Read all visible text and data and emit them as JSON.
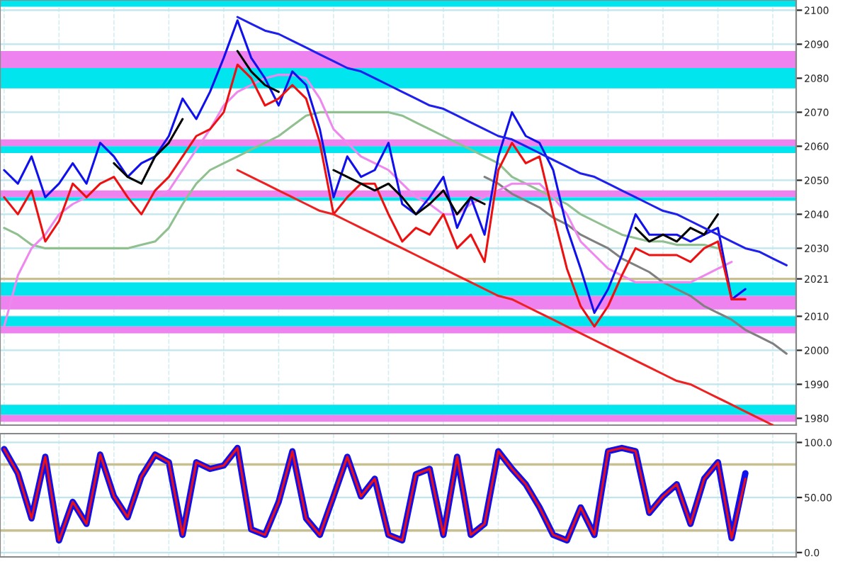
{
  "chart_data": [
    {
      "type": "line",
      "tick_labels": "y",
      "grid": true,
      "categories": [
        null,
        null,
        null,
        null,
        null,
        null,
        null,
        null,
        null,
        null,
        null,
        null,
        null,
        null,
        null,
        null,
        null,
        null,
        null,
        null,
        null,
        null,
        null,
        null,
        null,
        null,
        null,
        null,
        null,
        null,
        null,
        null,
        null,
        null,
        null,
        null,
        null,
        null,
        null,
        null,
        null,
        null,
        null,
        null,
        null,
        null,
        null,
        null,
        null,
        null,
        null,
        null,
        null,
        null,
        null,
        null,
        null,
        null
      ],
      "ylim": [
        1978,
        2103
      ],
      "yticks": [
        1980,
        1990,
        2000,
        2010,
        2021,
        2030,
        2040,
        2050,
        2060,
        2070,
        2080,
        2090,
        2100
      ],
      "series": [
        {
          "color": "#808080",
          "values": [
            null,
            null,
            null,
            null,
            null,
            null,
            null,
            null,
            null,
            null,
            null,
            null,
            null,
            null,
            null,
            null,
            null,
            null,
            null,
            null,
            null,
            null,
            null,
            null,
            null,
            null,
            null,
            null,
            null,
            null,
            null,
            null,
            null,
            null,
            null,
            2051,
            2049,
            2046,
            2044,
            2042,
            2039,
            2037,
            2034,
            2032,
            2030,
            2027,
            2025,
            2023,
            2020,
            2018,
            2016,
            2013,
            2011,
            2009,
            2006,
            2004,
            2002,
            1999
          ]
        },
        {
          "color": "#90c090",
          "values": [
            2036,
            2034,
            2031,
            2030,
            2030,
            2030,
            2030,
            2030,
            2030,
            2030,
            2031,
            2032,
            2036,
            2043,
            2049,
            2053,
            2055,
            2057,
            2059,
            2061,
            2063,
            2066,
            2069,
            2070,
            2070,
            2070,
            2070,
            2070,
            2070,
            2069,
            2067,
            2065,
            2063,
            2061,
            2059,
            2057,
            2055,
            2051,
            2049,
            2047,
            2045,
            2043,
            2040,
            2038,
            2036,
            2034,
            2033,
            2032,
            2032,
            2031,
            2031,
            2031,
            2030,
            null,
            null,
            null,
            null,
            null
          ]
        },
        {
          "color": "#ee88ee",
          "values": [
            2007,
            2022,
            2030,
            2034,
            2040,
            2043,
            2045,
            2045,
            2045,
            2045,
            2045,
            2045,
            2047,
            2053,
            2059,
            2065,
            2072,
            2076,
            2078,
            2080,
            2081,
            2081,
            2080,
            2074,
            2065,
            2061,
            2057,
            2055,
            2053,
            2049,
            2045,
            2043,
            2040,
            2040,
            2043,
            2045,
            2047,
            2049,
            2049,
            2049,
            2045,
            2040,
            2032,
            2028,
            2024,
            2022,
            2020,
            2020,
            2020,
            2020,
            2020,
            2022,
            2024,
            2026,
            null,
            null,
            null,
            null
          ]
        },
        {
          "color": "#1010ee",
          "values": [
            2053,
            2049,
            2057,
            2045,
            2049,
            2055,
            2049,
            2061,
            2057,
            2051,
            2055,
            2057,
            2063,
            2074,
            2068,
            2076,
            2086,
            2097,
            2086,
            2080,
            2072,
            2082,
            2078,
            2065,
            2045,
            2057,
            2051,
            2053,
            2061,
            2043,
            2040,
            2045,
            2051,
            2036,
            2045,
            2034,
            2057,
            2070,
            2063,
            2061,
            2053,
            2036,
            2024,
            2011,
            2018,
            2028,
            2040,
            2034,
            2034,
            2034,
            2032,
            2034,
            2036,
            2015,
            2018,
            null,
            null,
            null
          ]
        },
        {
          "color": "#ee1010",
          "values": [
            2045,
            2040,
            2047,
            2032,
            2038,
            2049,
            2045,
            2049,
            2051,
            2045,
            2040,
            2047,
            2051,
            2057,
            2063,
            2065,
            2070,
            2084,
            2080,
            2072,
            2074,
            2078,
            2074,
            2061,
            2040,
            2045,
            2049,
            2049,
            2040,
            2032,
            2036,
            2034,
            2040,
            2030,
            2034,
            2026,
            2053,
            2061,
            2055,
            2057,
            2040,
            2024,
            2013,
            2007,
            2013,
            2022,
            2030,
            2028,
            2028,
            2028,
            2026,
            2030,
            2032,
            2015,
            2015,
            null,
            null,
            null
          ]
        },
        {
          "color": "#000000",
          "values": [
            null,
            null,
            null,
            null,
            null,
            null,
            null,
            null,
            2055,
            2051,
            2049,
            2057,
            2061,
            2068,
            null,
            null,
            null,
            2088,
            2082,
            2078,
            2076,
            null,
            null,
            null,
            2053,
            2051,
            2049,
            2047,
            2049,
            2045,
            2040,
            2043,
            2047,
            2040,
            2045,
            2043,
            null,
            null,
            null,
            null,
            null,
            null,
            null,
            null,
            null,
            null,
            2036,
            2032,
            2034,
            2032,
            2036,
            2034,
            2040,
            null,
            null,
            null,
            null,
            null
          ]
        },
        {
          "color": "#2020ee",
          "values": [
            null,
            null,
            null,
            null,
            null,
            null,
            null,
            null,
            null,
            null,
            null,
            null,
            null,
            null,
            null,
            null,
            null,
            2098,
            2096,
            2094,
            2093,
            2091,
            2089,
            2087,
            2085,
            2083,
            2082,
            2080,
            2078,
            2076,
            2074,
            2072,
            2071,
            2069,
            2067,
            2065,
            2063,
            2062,
            2060,
            2058,
            2056,
            2054,
            2052,
            2051,
            2049,
            2047,
            2045,
            2043,
            2041,
            2040,
            2038,
            2036,
            2034,
            2032,
            2030,
            2029,
            2027,
            2025
          ]
        },
        {
          "color": "#ee2020",
          "values": [
            null,
            null,
            null,
            null,
            null,
            null,
            null,
            null,
            null,
            null,
            null,
            null,
            null,
            null,
            null,
            null,
            null,
            2053,
            2051,
            2049,
            2047,
            2045,
            2043,
            2041,
            2040,
            2038,
            2036,
            2034,
            2032,
            2030,
            2028,
            2026,
            2024,
            2022,
            2020,
            2018,
            2016,
            2015,
            2013,
            2011,
            2009,
            2007,
            2005,
            2003,
            2001,
            1999,
            1997,
            1995,
            1993,
            1991,
            1990,
            1988,
            1986,
            1984,
            1982,
            1980,
            1978,
            null
          ]
        }
      ],
      "ref_lines": [
        {
          "axis": "y",
          "value": 2021,
          "color": "#c8c090"
        }
      ],
      "bands": [
        {
          "axis": "y",
          "from": 2101,
          "to": 2103,
          "color": "#00e5ee"
        },
        {
          "axis": "y",
          "from": 2083,
          "to": 2088,
          "color": "#ee82ee"
        },
        {
          "axis": "y",
          "from": 2077,
          "to": 2083,
          "color": "#00e5ee"
        },
        {
          "axis": "y",
          "from": 2060,
          "to": 2062,
          "color": "#ee82ee"
        },
        {
          "axis": "y",
          "from": 2058,
          "to": 2060,
          "color": "#00e5ee"
        },
        {
          "axis": "y",
          "from": 2045,
          "to": 2047,
          "color": "#ee82ee"
        },
        {
          "axis": "y",
          "from": 2044,
          "to": 2045,
          "color": "#00e5ee"
        },
        {
          "axis": "y",
          "from": 2016,
          "to": 2020,
          "color": "#00e5ee"
        },
        {
          "axis": "y",
          "from": 2012,
          "to": 2016,
          "color": "#ee82ee"
        },
        {
          "axis": "y",
          "from": 2007,
          "to": 2010,
          "color": "#00e5ee"
        },
        {
          "axis": "y",
          "from": 2005,
          "to": 2007,
          "color": "#ee82ee"
        },
        {
          "axis": "y",
          "from": 1981,
          "to": 1984,
          "color": "#00e5ee"
        },
        {
          "axis": "y",
          "from": 1979,
          "to": 1981,
          "color": "#ee82ee"
        }
      ]
    },
    {
      "type": "line",
      "tick_labels": "y",
      "grid": true,
      "categories": [
        null,
        null,
        null,
        null,
        null,
        null,
        null,
        null,
        null,
        null,
        null,
        null,
        null,
        null,
        null,
        null,
        null,
        null,
        null,
        null,
        null,
        null,
        null,
        null,
        null,
        null,
        null,
        null,
        null,
        null,
        null,
        null,
        null,
        null,
        null,
        null,
        null,
        null,
        null,
        null,
        null,
        null,
        null,
        null,
        null,
        null,
        null,
        null,
        null,
        null,
        null,
        null,
        null,
        null,
        null,
        null,
        null,
        null
      ],
      "ylim": [
        -4,
        108
      ],
      "yticks": [
        {
          "value": 0,
          "label": "0.0"
        },
        {
          "value": 50,
          "label": "50.00"
        },
        {
          "value": 100,
          "label": "100.0"
        }
      ],
      "series": [
        {
          "color": "#1010ee",
          "values": [
            94,
            72,
            31,
            87,
            11,
            46,
            26,
            89,
            51,
            32,
            69,
            89,
            82,
            16,
            82,
            76,
            79,
            95,
            21,
            16,
            46,
            92,
            31,
            16,
            51,
            87,
            51,
            67,
            16,
            11,
            71,
            76,
            16,
            87,
            16,
            26,
            92,
            76,
            62,
            41,
            16,
            11,
            41,
            16,
            92,
            95,
            92,
            36,
            51,
            62,
            26,
            67,
            82,
            13,
            72,
            null,
            null,
            null
          ]
        },
        {
          "color": "#ee1010",
          "values": [
            94,
            72,
            31,
            87,
            11,
            46,
            26,
            89,
            51,
            32,
            69,
            89,
            82,
            16,
            82,
            76,
            79,
            95,
            21,
            16,
            46,
            92,
            31,
            16,
            51,
            87,
            51,
            67,
            16,
            11,
            71,
            76,
            16,
            87,
            16,
            26,
            92,
            76,
            62,
            41,
            16,
            11,
            41,
            16,
            92,
            95,
            92,
            36,
            51,
            62,
            26,
            67,
            82,
            13,
            67,
            null,
            null,
            null
          ]
        }
      ],
      "ref_lines": [
        {
          "axis": "y",
          "value": 80,
          "color": "#c8c090"
        },
        {
          "axis": "y",
          "value": 20,
          "color": "#c8c090"
        }
      ]
    }
  ]
}
